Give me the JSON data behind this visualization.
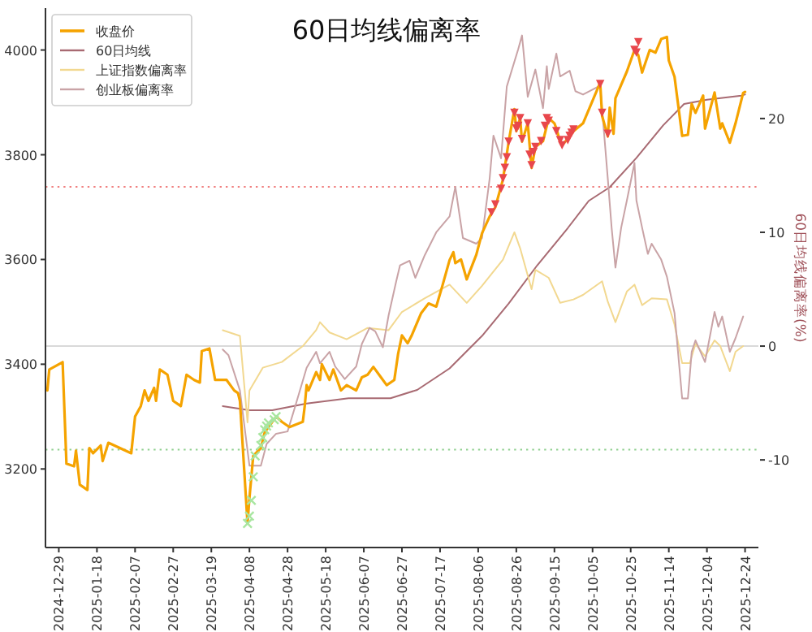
{
  "chart_data": {
    "type": "line",
    "title": "60日均线偏离率",
    "y2label": "60日均线偏离率(%)",
    "legend": "top left",
    "grid": false,
    "xlim": [
      "2024-12-22",
      "2025-12-31"
    ],
    "xticks": [
      "2024-12-29",
      "2025-01-18",
      "2025-02-07",
      "2025-02-27",
      "2025-03-19",
      "2025-04-08",
      "2025-04-28",
      "2025-05-18",
      "2025-06-07",
      "2025-06-27",
      "2025-07-17",
      "2025-08-06",
      "2025-08-26",
      "2025-09-15",
      "2025-10-05",
      "2025-10-25",
      "2025-11-14",
      "2025-12-04",
      "2025-12-24"
    ],
    "ylim": [
      3050,
      4080
    ],
    "yticks": [
      3200,
      3400,
      3600,
      3800,
      4000
    ],
    "y2lim": [
      -17.7,
      29.7
    ],
    "y2ticks": [
      -10,
      0,
      10,
      20
    ],
    "ref_lines": [
      {
        "axis": "y2",
        "value": 0,
        "color": "#d9d9d9",
        "line_style": "solid"
      },
      {
        "axis": "y2",
        "value": 14,
        "color": "#f08080",
        "line_style": "dotted"
      },
      {
        "axis": "y2",
        "value": -9.1,
        "color": "#90d090",
        "line_style": "dotted"
      }
    ],
    "series": [
      {
        "name": "收盘价",
        "color": "#f5a300",
        "x": [
          "2024-12-23",
          "2024-12-24",
          "2024-12-31",
          "2025-01-02",
          "2025-01-06",
          "2025-01-07",
          "2025-01-09",
          "2025-01-13",
          "2025-01-14",
          "2025-01-16",
          "2025-01-20",
          "2025-01-21",
          "2025-01-24",
          "2025-02-05",
          "2025-02-07",
          "2025-02-10",
          "2025-02-12",
          "2025-02-14",
          "2025-02-17",
          "2025-02-18",
          "2025-02-20",
          "2025-02-24",
          "2025-02-27",
          "2025-03-03",
          "2025-03-06",
          "2025-03-10",
          "2025-03-13",
          "2025-03-14",
          "2025-03-18",
          "2025-03-21",
          "2025-03-27",
          "2025-03-31",
          "2025-04-02",
          "2025-04-03",
          "2025-04-07",
          "2025-04-08",
          "2025-04-10",
          "2025-04-14",
          "2025-04-16",
          "2025-04-18",
          "2025-04-22",
          "2025-04-25",
          "2025-04-29",
          "2025-05-06",
          "2025-05-07",
          "2025-05-08",
          "2025-05-09",
          "2025-05-13",
          "2025-05-15",
          "2025-05-16",
          "2025-05-20",
          "2025-05-22",
          "2025-05-26",
          "2025-05-29",
          "2025-06-03",
          "2025-06-06",
          "2025-06-09",
          "2025-06-12",
          "2025-06-16",
          "2025-06-19",
          "2025-06-23",
          "2025-06-25",
          "2025-06-27",
          "2025-06-30",
          "2025-07-02",
          "2025-07-07",
          "2025-07-11",
          "2025-07-15",
          "2025-07-18",
          "2025-07-22",
          "2025-07-24",
          "2025-07-25",
          "2025-07-28",
          "2025-07-31",
          "2025-08-05",
          "2025-08-08",
          "2025-08-12",
          "2025-08-15",
          "2025-08-19",
          "2025-08-22",
          "2025-08-25",
          "2025-08-26",
          "2025-08-28",
          "2025-08-29",
          "2025-09-01",
          "2025-09-03",
          "2025-09-05",
          "2025-09-09",
          "2025-09-12",
          "2025-09-15",
          "2025-09-16",
          "2025-09-18",
          "2025-09-19",
          "2025-09-23",
          "2025-09-25",
          "2025-09-30",
          "2025-10-09",
          "2025-10-10",
          "2025-10-13",
          "2025-10-14",
          "2025-10-16",
          "2025-10-17",
          "2025-10-23",
          "2025-10-27",
          "2025-10-29",
          "2025-10-31",
          "2025-11-04",
          "2025-11-07",
          "2025-11-10",
          "2025-11-13",
          "2025-11-14",
          "2025-11-17",
          "2025-11-21",
          "2025-11-24",
          "2025-11-26",
          "2025-11-28",
          "2025-12-02",
          "2025-12-03",
          "2025-12-08",
          "2025-12-11",
          "2025-12-12",
          "2025-12-16",
          "2025-12-19",
          "2025-12-23",
          "2025-12-24"
        ],
        "values": [
          3350,
          3390,
          3404,
          3210,
          3205,
          3235,
          3170,
          3160,
          3240,
          3230,
          3245,
          3215,
          3250,
          3230,
          3300,
          3320,
          3350,
          3330,
          3355,
          3330,
          3390,
          3380,
          3330,
          3320,
          3380,
          3370,
          3365,
          3425,
          3430,
          3370,
          3370,
          3350,
          3345,
          3330,
          3096,
          3145,
          3225,
          3240,
          3270,
          3280,
          3300,
          3290,
          3280,
          3290,
          3320,
          3360,
          3350,
          3385,
          3370,
          3400,
          3370,
          3390,
          3350,
          3360,
          3350,
          3375,
          3380,
          3395,
          3375,
          3360,
          3370,
          3420,
          3455,
          3440,
          3454,
          3497,
          3516,
          3510,
          3547,
          3599,
          3614,
          3593,
          3600,
          3562,
          3609,
          3650,
          3682,
          3700,
          3753,
          3825,
          3887,
          3845,
          3870,
          3825,
          3860,
          3775,
          3815,
          3826,
          3870,
          3860,
          3850,
          3825,
          3818,
          3835,
          3845,
          3860,
          3938,
          3874,
          3835,
          3890,
          3840,
          3908,
          3959,
          4000,
          3990,
          3957,
          4000,
          3995,
          4021,
          4025,
          3980,
          3949,
          3836,
          3838,
          3897,
          3880,
          3913,
          3850,
          3919,
          3850,
          3860,
          3823,
          3860,
          3918,
          3920
        ]
      },
      {
        "name": "60日均线",
        "color": "#a86a72",
        "x": [
          "2025-03-25",
          "2025-04-08",
          "2025-04-20",
          "2025-05-08",
          "2025-05-30",
          "2025-06-21",
          "2025-07-05",
          "2025-07-22",
          "2025-08-08",
          "2025-08-22",
          "2025-09-06",
          "2025-09-22",
          "2025-10-03",
          "2025-10-14",
          "2025-10-28",
          "2025-11-11",
          "2025-11-22",
          "2025-12-04",
          "2025-12-22",
          "2025-12-24"
        ],
        "values": [
          3320,
          3312,
          3312,
          3325,
          3335,
          3335,
          3351,
          3392,
          3454,
          3516,
          3589,
          3660,
          3712,
          3738,
          3794,
          3856,
          3897,
          3905,
          3913,
          3915
        ]
      },
      {
        "name": "上证指数偏离率",
        "axis": "y2",
        "color": "#f2d890",
        "x": [
          "2025-03-25",
          "2025-04-03",
          "2025-04-07",
          "2025-04-08",
          "2025-04-15",
          "2025-04-25",
          "2025-05-06",
          "2025-05-13",
          "2025-05-15",
          "2025-05-20",
          "2025-05-29",
          "2025-06-09",
          "2025-06-20",
          "2025-06-27",
          "2025-07-09",
          "2025-07-22",
          "2025-07-31",
          "2025-08-08",
          "2025-08-19",
          "2025-08-25",
          "2025-08-28",
          "2025-09-03",
          "2025-09-05",
          "2025-09-12",
          "2025-09-18",
          "2025-09-25",
          "2025-09-30",
          "2025-10-10",
          "2025-10-13",
          "2025-10-17",
          "2025-10-23",
          "2025-10-27",
          "2025-10-31",
          "2025-11-05",
          "2025-11-13",
          "2025-11-17",
          "2025-11-21",
          "2025-11-25",
          "2025-11-28",
          "2025-12-03",
          "2025-12-08",
          "2025-12-11",
          "2025-12-16",
          "2025-12-19",
          "2025-12-23"
        ],
        "values": [
          1.4,
          0.9,
          -6.7,
          -3.9,
          -1.9,
          -1.4,
          0.0,
          1.4,
          2.1,
          1.2,
          0.6,
          1.6,
          1.4,
          3.0,
          4.2,
          5.4,
          3.8,
          5.3,
          7.6,
          10.0,
          8.6,
          5.0,
          6.7,
          6.0,
          3.8,
          4.1,
          4.5,
          5.7,
          3.9,
          2.1,
          4.8,
          5.4,
          3.6,
          4.2,
          4.1,
          1.9,
          -1.5,
          -1.5,
          0.2,
          -0.9,
          0.5,
          0.0,
          -2.2,
          -0.5,
          0.0
        ]
      },
      {
        "name": "创业板偏离率",
        "axis": "y2",
        "color": "#c9a3a6",
        "x": [
          "2025-03-25",
          "2025-03-28",
          "2025-04-03",
          "2025-04-08",
          "2025-04-14",
          "2025-04-17",
          "2025-04-22",
          "2025-04-28",
          "2025-05-02",
          "2025-05-08",
          "2025-05-13",
          "2025-05-15",
          "2025-05-20",
          "2025-05-23",
          "2025-05-28",
          "2025-06-03",
          "2025-06-06",
          "2025-06-10",
          "2025-06-13",
          "2025-06-17",
          "2025-06-20",
          "2025-06-24",
          "2025-06-26",
          "2025-07-01",
          "2025-07-04",
          "2025-07-09",
          "2025-07-15",
          "2025-07-22",
          "2025-07-25",
          "2025-07-29",
          "2025-08-05",
          "2025-08-08",
          "2025-08-12",
          "2025-08-14",
          "2025-08-18",
          "2025-08-21",
          "2025-08-27",
          "2025-08-29",
          "2025-09-01",
          "2025-09-05",
          "2025-09-09",
          "2025-09-11",
          "2025-09-12",
          "2025-09-16",
          "2025-09-18",
          "2025-09-23",
          "2025-09-26",
          "2025-09-30",
          "2025-10-09",
          "2025-10-13",
          "2025-10-15",
          "2025-10-17",
          "2025-10-20",
          "2025-10-23",
          "2025-10-27",
          "2025-10-28",
          "2025-10-31",
          "2025-11-03",
          "2025-11-05",
          "2025-11-10",
          "2025-11-13",
          "2025-11-17",
          "2025-11-21",
          "2025-11-24",
          "2025-11-26",
          "2025-11-28",
          "2025-12-03",
          "2025-12-08",
          "2025-12-10",
          "2025-12-12",
          "2025-12-16",
          "2025-12-19",
          "2025-12-23"
        ],
        "values": [
          -0.3,
          -0.8,
          -3.9,
          -10.5,
          -10.5,
          -8.6,
          -7.7,
          -7.5,
          -5.3,
          -1.9,
          -0.5,
          -1.5,
          -0.5,
          -1.8,
          -2.9,
          -1.8,
          0.2,
          1.6,
          1.3,
          -0.1,
          2.7,
          5.7,
          7.1,
          7.5,
          6.0,
          8.0,
          10.0,
          11.4,
          14.0,
          9.5,
          9.0,
          9.5,
          14.7,
          18.5,
          16.5,
          22.8,
          26.1,
          27.3,
          21.9,
          24.3,
          20.9,
          24.6,
          22.6,
          25.7,
          23.7,
          24.2,
          22.4,
          22.1,
          22.9,
          14.7,
          10.4,
          6.9,
          10.4,
          12.8,
          16.1,
          12.8,
          10.4,
          8.1,
          9.0,
          7.6,
          6.1,
          2.9,
          -4.6,
          -4.6,
          -0.5,
          0.5,
          -1.4,
          3.0,
          1.7,
          2.6,
          -0.5,
          0.7,
          2.6
        ]
      },
      {
        "type": "scatter",
        "marker": "triangle",
        "color": "#e8474c",
        "x": [
          "2025-08-13",
          "2025-08-15",
          "2025-08-18",
          "2025-08-19",
          "2025-08-20",
          "2025-08-21",
          "2025-08-22",
          "2025-08-25",
          "2025-08-26",
          "2025-08-27",
          "2025-08-28",
          "2025-08-29",
          "2025-09-01",
          "2025-09-02",
          "2025-09-03",
          "2025-09-04",
          "2025-09-05",
          "2025-09-08",
          "2025-09-10",
          "2025-09-11",
          "2025-09-12",
          "2025-09-16",
          "2025-09-18",
          "2025-09-19",
          "2025-09-22",
          "2025-09-23",
          "2025-09-24",
          "2025-09-25",
          "2025-10-09",
          "2025-10-10",
          "2025-10-13",
          "2025-10-27",
          "2025-10-28",
          "2025-10-29"
        ],
        "values": [
          3690,
          3705,
          3735,
          3755,
          3775,
          3795,
          3825,
          3880,
          3850,
          3855,
          3870,
          3830,
          3860,
          3800,
          3780,
          3805,
          3815,
          3826,
          3855,
          3870,
          3865,
          3845,
          3828,
          3818,
          3828,
          3836,
          3842,
          3848,
          3935,
          3880,
          3840,
          4000,
          3995,
          4015
        ]
      },
      {
        "type": "scatter",
        "marker": "cross",
        "color": "#a8e6a0",
        "x": [
          "2025-04-07",
          "2025-04-08",
          "2025-04-09",
          "2025-04-10",
          "2025-04-11",
          "2025-04-14",
          "2025-04-15",
          "2025-04-16",
          "2025-04-17",
          "2025-04-18",
          "2025-04-21",
          "2025-04-22"
        ],
        "values": [
          3096,
          3110,
          3140,
          3185,
          3225,
          3245,
          3260,
          3275,
          3282,
          3288,
          3294,
          3300
        ]
      }
    ]
  }
}
